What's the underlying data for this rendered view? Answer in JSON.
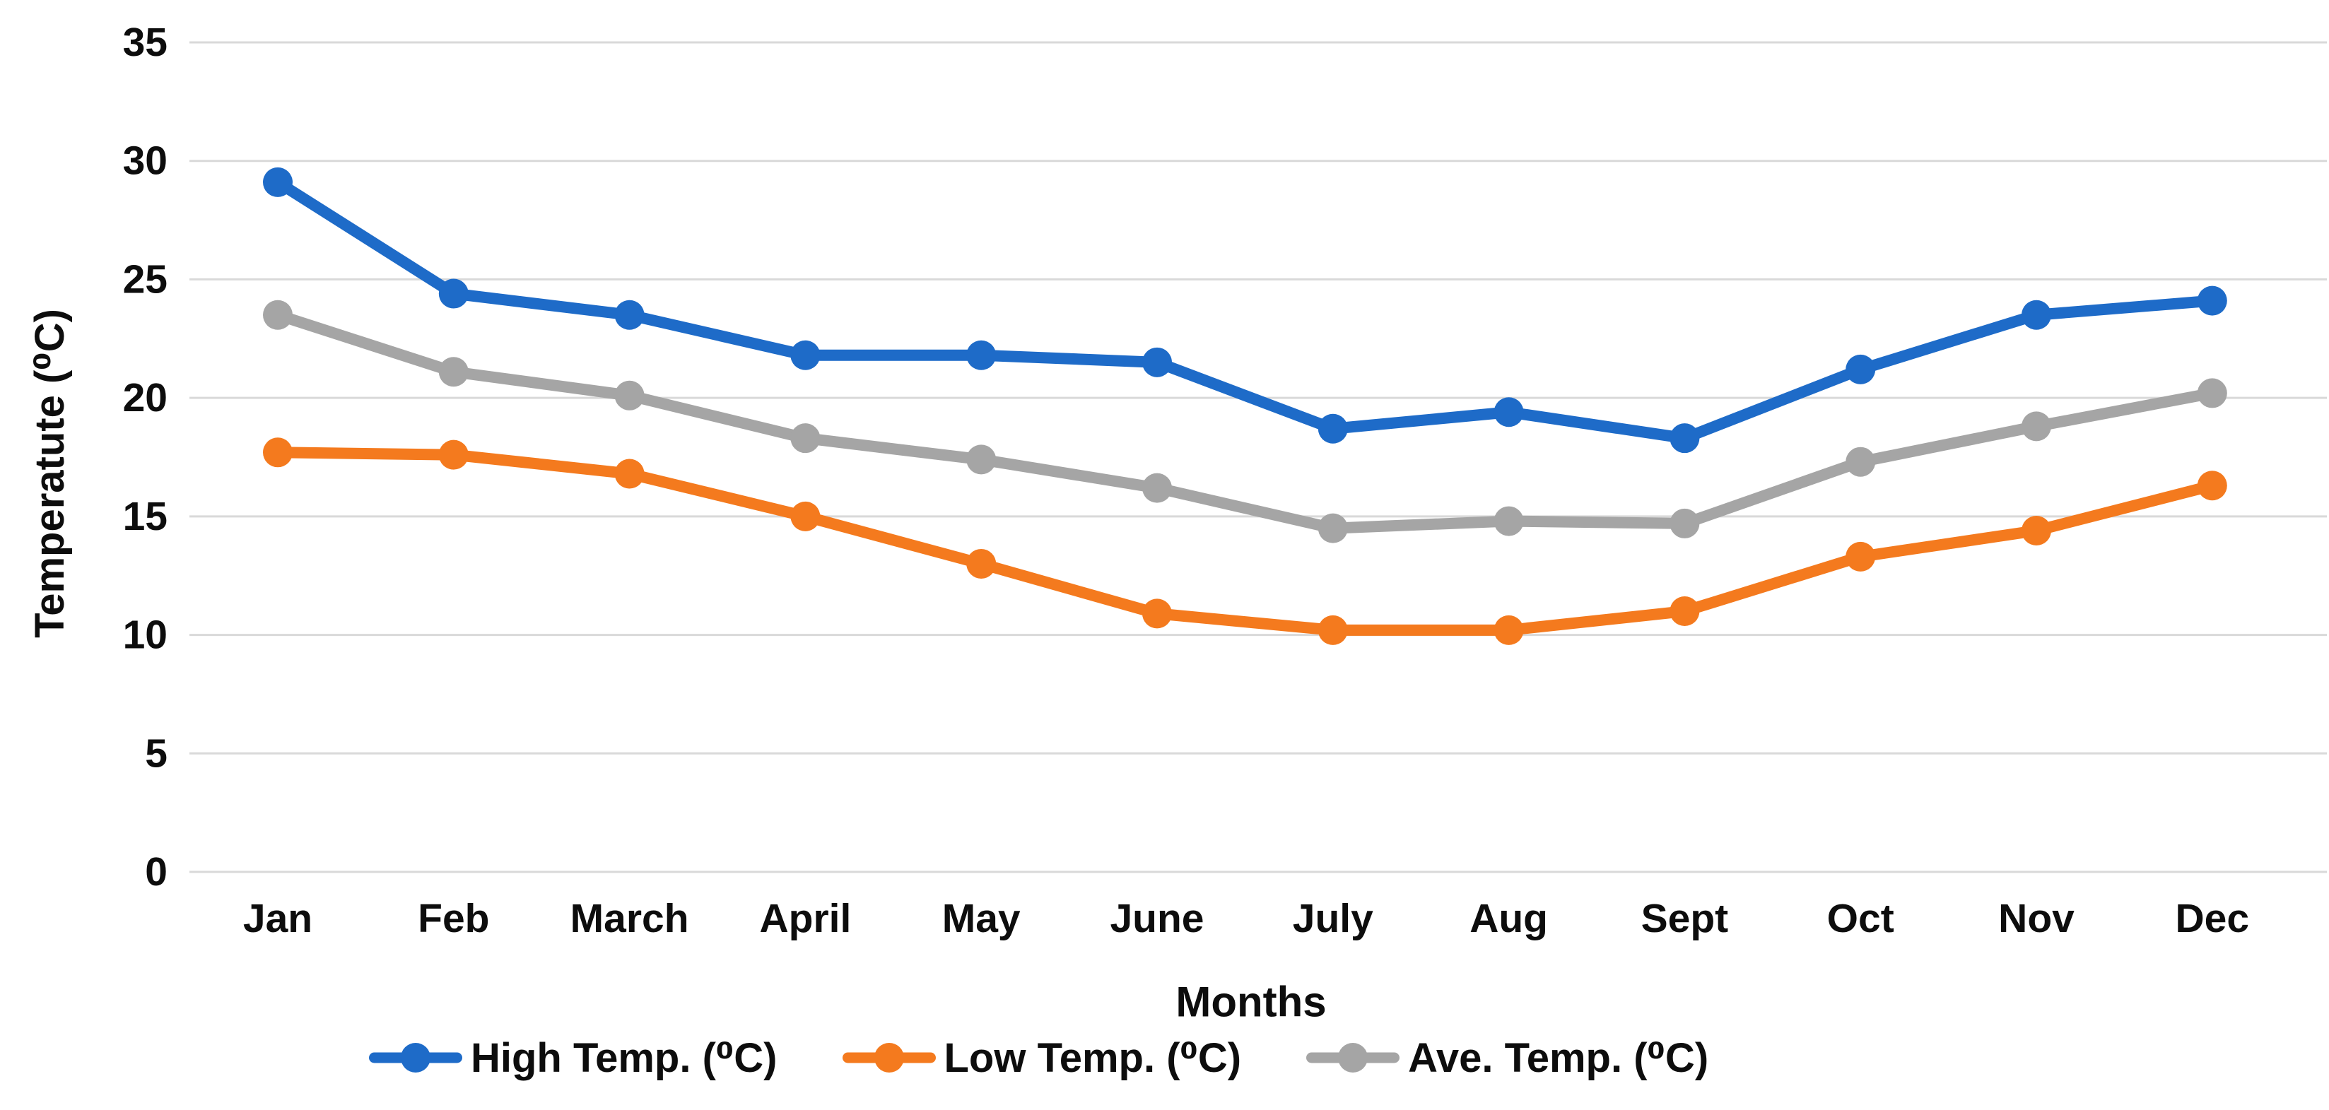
{
  "chart": {
    "y_axis_title": "Temperatute (⁰C)",
    "x_axis_title": "Months"
  },
  "legend": {
    "items": [
      {
        "label": "High Temp. (⁰C)",
        "color": "#1E6BC8"
      },
      {
        "label": "Low Temp. (⁰C)",
        "color": "#F47A1E"
      },
      {
        "label": "Ave. Temp. (⁰C)",
        "color": "#A5A5A5"
      }
    ]
  },
  "chart_data": {
    "type": "line",
    "title": "",
    "xlabel": "Months",
    "ylabel": "Temperatute (⁰C)",
    "categories": [
      "Jan",
      "Feb",
      "March",
      "April",
      "May",
      "June",
      "July",
      "Aug",
      "Sept",
      "Oct",
      "Nov",
      "Dec"
    ],
    "series": [
      {
        "name": "High Temp. (⁰C)",
        "color": "#1E6BC8",
        "values": [
          29.1,
          24.4,
          23.5,
          21.8,
          21.8,
          21.5,
          18.7,
          19.4,
          18.3,
          21.2,
          23.5,
          24.1
        ]
      },
      {
        "name": "Low Temp. (⁰C)",
        "color": "#F47A1E",
        "values": [
          17.7,
          17.6,
          16.8,
          15.0,
          13.0,
          10.9,
          10.2,
          10.2,
          11.0,
          13.3,
          14.4,
          16.3
        ]
      },
      {
        "name": "Ave. Temp. (⁰C)",
        "color": "#A5A5A5",
        "values": [
          23.5,
          21.1,
          20.1,
          18.3,
          17.4,
          16.2,
          14.5,
          14.8,
          14.7,
          17.3,
          18.8,
          20.2
        ]
      }
    ],
    "ylim": [
      0,
      35
    ],
    "yticks": [
      0,
      5,
      10,
      15,
      20,
      25,
      30,
      35
    ],
    "grid": true,
    "legend_position": "bottom",
    "marker": "circle"
  },
  "style": {
    "gridline_color": "#D9D9D9",
    "text_color": "#0d0d0d",
    "background": "#ffffff"
  }
}
